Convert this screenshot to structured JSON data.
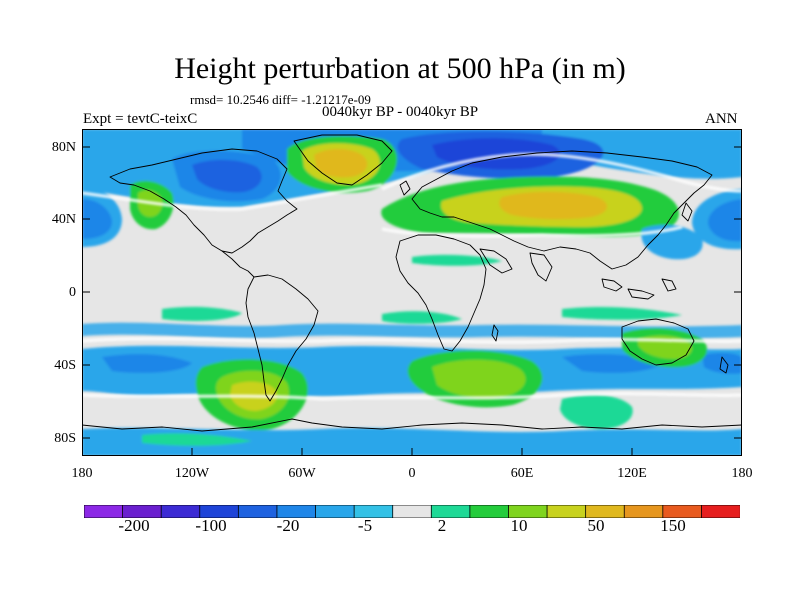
{
  "title": "Height perturbation at 500 hPa (in m)",
  "stats": "rmsd= 10.2546 diff= -1.21217e-09",
  "experiment": "Expt = tevtC-teixC",
  "period": "0040kyr BP - 0040kyr BP",
  "season": "ANN",
  "map": {
    "projection": "cylindrical equidistant",
    "field": "500 hPa height perturbation",
    "lat_ticks": [
      "80N",
      "40N",
      "0",
      "40S",
      "80S"
    ],
    "lon_ticks": [
      "180",
      "120W",
      "60W",
      "0",
      "60E",
      "120E",
      "180"
    ]
  },
  "colorbar": {
    "colors": [
      "#8c28e6",
      "#6a1fcf",
      "#3c2bd4",
      "#1e44d8",
      "#1e62e0",
      "#1f86e8",
      "#29a6ea",
      "#33c1e6",
      "#e6e6e6",
      "#1ed996",
      "#24cc3c",
      "#7fd41e",
      "#c8d21e",
      "#e0b81e",
      "#e6961e",
      "#e85a1e",
      "#e61e1e"
    ],
    "labels": [
      "-200",
      "-100",
      "-20",
      "-5",
      "2",
      "10",
      "50",
      "150"
    ]
  }
}
